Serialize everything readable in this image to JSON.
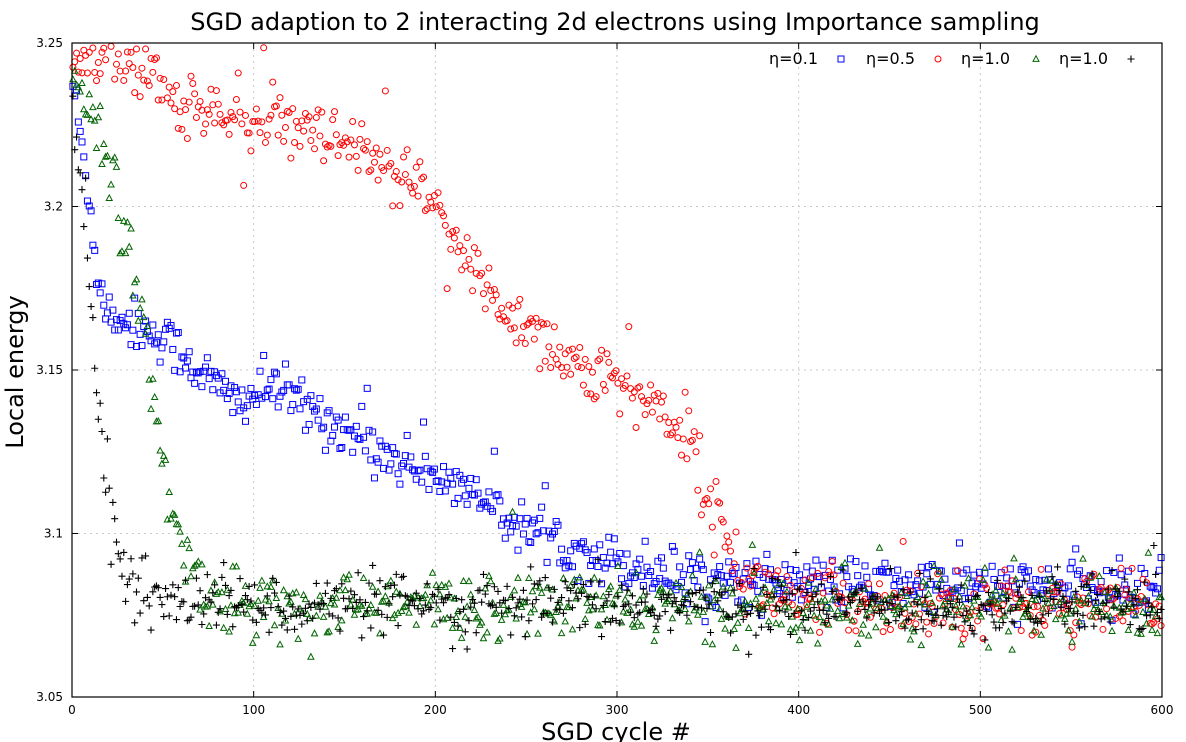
{
  "chart_data": {
    "type": "scatter",
    "title": "SGD adaption to 2 interacting 2d electrons using Importance sampling",
    "xlabel": "SGD cycle #",
    "ylabel": "Local energy",
    "xlim": [
      0,
      600
    ],
    "ylim": [
      3.05,
      3.25
    ],
    "xticks": [
      "0",
      "100",
      "200",
      "300",
      "400",
      "500",
      "600"
    ],
    "yticks": [
      "3.05",
      "3.1",
      "3.15",
      "3.2",
      "3.25"
    ],
    "grid": true,
    "legend_position": "top-right",
    "n_points_per_series": 600,
    "series": [
      {
        "name": "η=0.1",
        "color": "#0000ff",
        "marker": "square",
        "anchors": [
          [
            0,
            3.24
          ],
          [
            10,
            3.2
          ],
          [
            15,
            3.175
          ],
          [
            20,
            3.168
          ],
          [
            30,
            3.165
          ],
          [
            50,
            3.16
          ],
          [
            70,
            3.15
          ],
          [
            90,
            3.14
          ],
          [
            110,
            3.145
          ],
          [
            130,
            3.138
          ],
          [
            150,
            3.132
          ],
          [
            170,
            3.125
          ],
          [
            190,
            3.12
          ],
          [
            210,
            3.115
          ],
          [
            230,
            3.108
          ],
          [
            250,
            3.102
          ],
          [
            270,
            3.097
          ],
          [
            290,
            3.093
          ],
          [
            310,
            3.09
          ],
          [
            330,
            3.088
          ],
          [
            360,
            3.086
          ],
          [
            400,
            3.085
          ],
          [
            450,
            3.084
          ],
          [
            500,
            3.084
          ],
          [
            550,
            3.083
          ],
          [
            600,
            3.083
          ]
        ],
        "noise": 0.004
      },
      {
        "name": "η=0.5",
        "color": "#ff0000",
        "marker": "circle",
        "anchors": [
          [
            0,
            3.245
          ],
          [
            20,
            3.248
          ],
          [
            40,
            3.24
          ],
          [
            60,
            3.232
          ],
          [
            80,
            3.228
          ],
          [
            100,
            3.226
          ],
          [
            130,
            3.222
          ],
          [
            150,
            3.218
          ],
          [
            160,
            3.215
          ],
          [
            180,
            3.21
          ],
          [
            200,
            3.2
          ],
          [
            220,
            3.18
          ],
          [
            240,
            3.168
          ],
          [
            260,
            3.16
          ],
          [
            280,
            3.15
          ],
          [
            300,
            3.145
          ],
          [
            320,
            3.14
          ],
          [
            340,
            3.13
          ],
          [
            350,
            3.11
          ],
          [
            360,
            3.1
          ],
          [
            365,
            3.092
          ],
          [
            370,
            3.085
          ],
          [
            400,
            3.08
          ],
          [
            450,
            3.079
          ],
          [
            500,
            3.079
          ],
          [
            550,
            3.078
          ],
          [
            600,
            3.078
          ]
        ],
        "noise": 0.005
      },
      {
        "name": "η=1.0",
        "color": "#006400",
        "marker": "triangle",
        "anchors": [
          [
            0,
            3.24
          ],
          [
            10,
            3.232
          ],
          [
            20,
            3.215
          ],
          [
            30,
            3.19
          ],
          [
            40,
            3.16
          ],
          [
            50,
            3.12
          ],
          [
            60,
            3.095
          ],
          [
            70,
            3.085
          ],
          [
            80,
            3.08
          ],
          [
            100,
            3.078
          ],
          [
            200,
            3.078
          ],
          [
            300,
            3.078
          ],
          [
            400,
            3.078
          ],
          [
            500,
            3.078
          ],
          [
            600,
            3.077
          ]
        ],
        "noise": 0.005
      },
      {
        "name": "η=1.0",
        "color": "#000000",
        "marker": "plus",
        "anchors": [
          [
            0,
            3.235
          ],
          [
            5,
            3.21
          ],
          [
            10,
            3.17
          ],
          [
            15,
            3.135
          ],
          [
            20,
            3.11
          ],
          [
            25,
            3.095
          ],
          [
            30,
            3.085
          ],
          [
            40,
            3.08
          ],
          [
            60,
            3.079
          ],
          [
            100,
            3.078
          ],
          [
            200,
            3.078
          ],
          [
            300,
            3.078
          ],
          [
            400,
            3.078
          ],
          [
            500,
            3.078
          ],
          [
            600,
            3.078
          ]
        ],
        "noise": 0.0045
      }
    ]
  }
}
